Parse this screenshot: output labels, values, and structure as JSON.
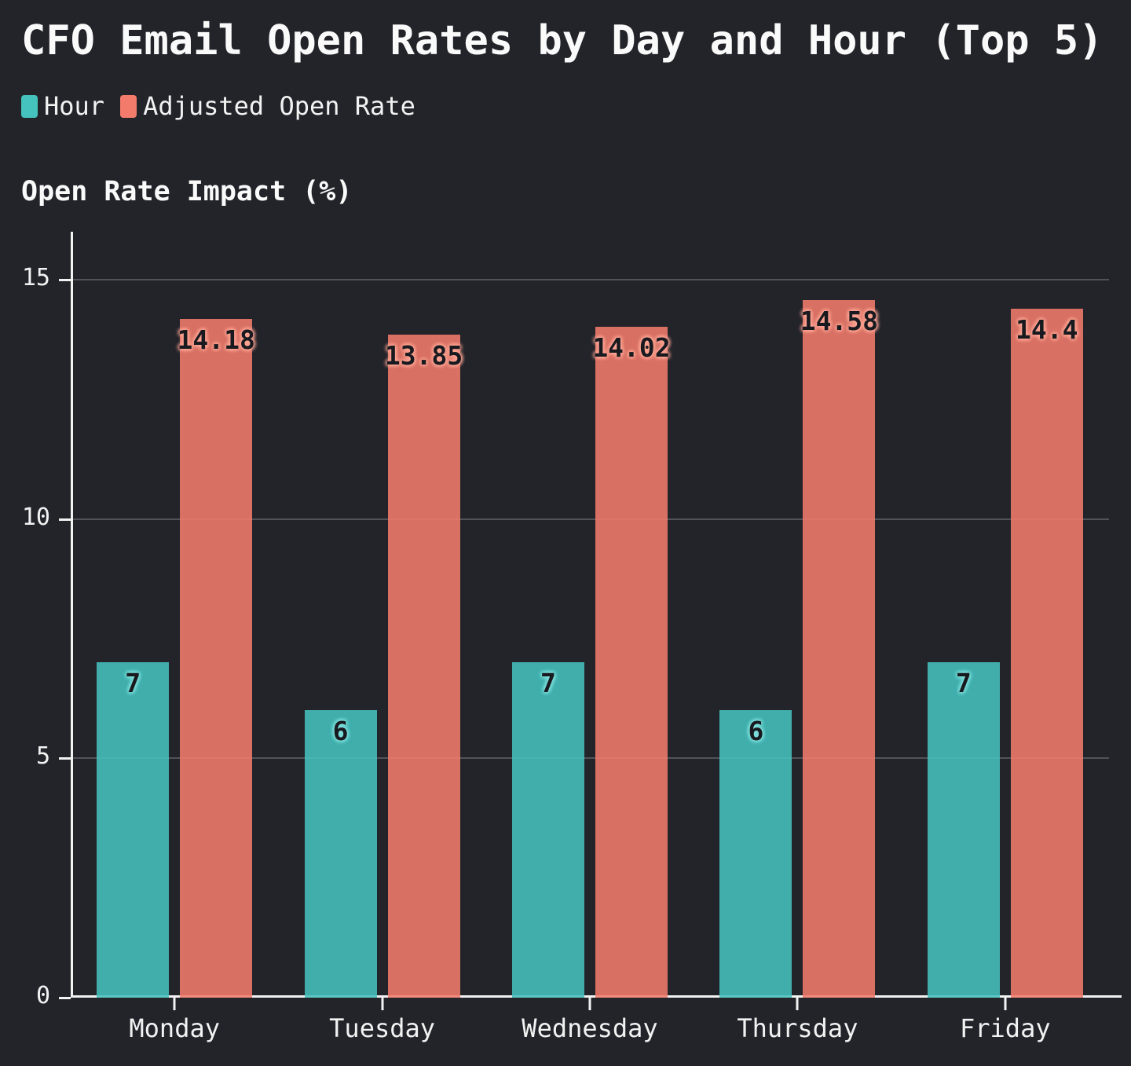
{
  "title": "CFO Email Open Rates by Day and Hour (Top 5)",
  "y_axis_title": "Open Rate Impact (%)",
  "legend": {
    "position": "top-left",
    "items": [
      "Hour",
      "Adjusted Open Rate"
    ]
  },
  "colors": {
    "background": "#23242a",
    "axis": "#f2f2f2",
    "gridline": "#50535a",
    "text": "#f2f2f2",
    "value_label_text": "#181a1f"
  },
  "chart_data": {
    "type": "bar",
    "title": "CFO Email Open Rates by Day and Hour (Top 5)",
    "xlabel": "",
    "ylabel": "Open Rate Impact (%)",
    "categories": [
      "Monday",
      "Tuesday",
      "Wednesday",
      "Thursday",
      "Friday"
    ],
    "series": [
      {
        "name": "Hour",
        "values": [
          7,
          6,
          7,
          6,
          7
        ],
        "value_labels": [
          "7",
          "6",
          "7",
          "6",
          "7"
        ],
        "color": "#45c2be",
        "bar_fill": "rgba(69,194,190,0.88)",
        "label_glow": "#7fe0dc"
      },
      {
        "name": "Adjusted Open Rate",
        "values": [
          14.18,
          13.85,
          14.02,
          14.58,
          14.4
        ],
        "value_labels": [
          "14.18",
          "13.85",
          "14.02",
          "14.58",
          "14.4"
        ],
        "color": "#f27b6c",
        "bar_fill": "rgba(242,123,108,0.88)",
        "label_glow": "#ffa695"
      }
    ],
    "ylim": [
      0,
      16
    ],
    "yticks": [
      0,
      5,
      10,
      15
    ],
    "grid": true,
    "legend_position": "top-left",
    "value_labels_shown": true
  }
}
